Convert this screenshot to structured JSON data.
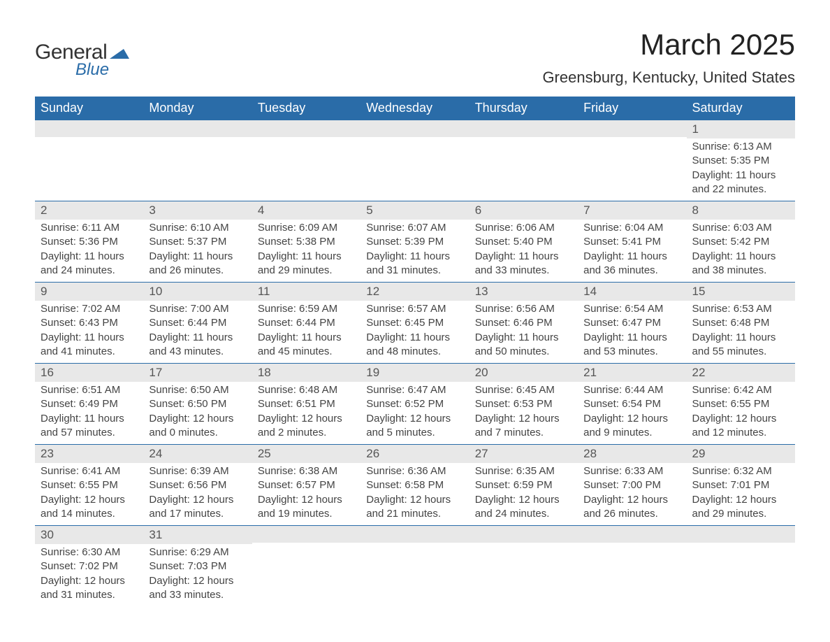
{
  "logo": {
    "text1": "General",
    "text2": "Blue",
    "shape_color": "#2a6ca8"
  },
  "title": "March 2025",
  "location": "Greensburg, Kentucky, United States",
  "colors": {
    "header_bg": "#2a6ca8",
    "header_text": "#ffffff",
    "daynum_bg": "#e8e8e8",
    "border": "#2a6ca8",
    "body_text": "#444444"
  },
  "weekdays": [
    "Sunday",
    "Monday",
    "Tuesday",
    "Wednesday",
    "Thursday",
    "Friday",
    "Saturday"
  ],
  "weeks": [
    [
      null,
      null,
      null,
      null,
      null,
      null,
      {
        "n": "1",
        "sunrise": "6:13 AM",
        "sunset": "5:35 PM",
        "daylight": "11 hours and 22 minutes."
      }
    ],
    [
      {
        "n": "2",
        "sunrise": "6:11 AM",
        "sunset": "5:36 PM",
        "daylight": "11 hours and 24 minutes."
      },
      {
        "n": "3",
        "sunrise": "6:10 AM",
        "sunset": "5:37 PM",
        "daylight": "11 hours and 26 minutes."
      },
      {
        "n": "4",
        "sunrise": "6:09 AM",
        "sunset": "5:38 PM",
        "daylight": "11 hours and 29 minutes."
      },
      {
        "n": "5",
        "sunrise": "6:07 AM",
        "sunset": "5:39 PM",
        "daylight": "11 hours and 31 minutes."
      },
      {
        "n": "6",
        "sunrise": "6:06 AM",
        "sunset": "5:40 PM",
        "daylight": "11 hours and 33 minutes."
      },
      {
        "n": "7",
        "sunrise": "6:04 AM",
        "sunset": "5:41 PM",
        "daylight": "11 hours and 36 minutes."
      },
      {
        "n": "8",
        "sunrise": "6:03 AM",
        "sunset": "5:42 PM",
        "daylight": "11 hours and 38 minutes."
      }
    ],
    [
      {
        "n": "9",
        "sunrise": "7:02 AM",
        "sunset": "6:43 PM",
        "daylight": "11 hours and 41 minutes."
      },
      {
        "n": "10",
        "sunrise": "7:00 AM",
        "sunset": "6:44 PM",
        "daylight": "11 hours and 43 minutes."
      },
      {
        "n": "11",
        "sunrise": "6:59 AM",
        "sunset": "6:44 PM",
        "daylight": "11 hours and 45 minutes."
      },
      {
        "n": "12",
        "sunrise": "6:57 AM",
        "sunset": "6:45 PM",
        "daylight": "11 hours and 48 minutes."
      },
      {
        "n": "13",
        "sunrise": "6:56 AM",
        "sunset": "6:46 PM",
        "daylight": "11 hours and 50 minutes."
      },
      {
        "n": "14",
        "sunrise": "6:54 AM",
        "sunset": "6:47 PM",
        "daylight": "11 hours and 53 minutes."
      },
      {
        "n": "15",
        "sunrise": "6:53 AM",
        "sunset": "6:48 PM",
        "daylight": "11 hours and 55 minutes."
      }
    ],
    [
      {
        "n": "16",
        "sunrise": "6:51 AM",
        "sunset": "6:49 PM",
        "daylight": "11 hours and 57 minutes."
      },
      {
        "n": "17",
        "sunrise": "6:50 AM",
        "sunset": "6:50 PM",
        "daylight": "12 hours and 0 minutes."
      },
      {
        "n": "18",
        "sunrise": "6:48 AM",
        "sunset": "6:51 PM",
        "daylight": "12 hours and 2 minutes."
      },
      {
        "n": "19",
        "sunrise": "6:47 AM",
        "sunset": "6:52 PM",
        "daylight": "12 hours and 5 minutes."
      },
      {
        "n": "20",
        "sunrise": "6:45 AM",
        "sunset": "6:53 PM",
        "daylight": "12 hours and 7 minutes."
      },
      {
        "n": "21",
        "sunrise": "6:44 AM",
        "sunset": "6:54 PM",
        "daylight": "12 hours and 9 minutes."
      },
      {
        "n": "22",
        "sunrise": "6:42 AM",
        "sunset": "6:55 PM",
        "daylight": "12 hours and 12 minutes."
      }
    ],
    [
      {
        "n": "23",
        "sunrise": "6:41 AM",
        "sunset": "6:55 PM",
        "daylight": "12 hours and 14 minutes."
      },
      {
        "n": "24",
        "sunrise": "6:39 AM",
        "sunset": "6:56 PM",
        "daylight": "12 hours and 17 minutes."
      },
      {
        "n": "25",
        "sunrise": "6:38 AM",
        "sunset": "6:57 PM",
        "daylight": "12 hours and 19 minutes."
      },
      {
        "n": "26",
        "sunrise": "6:36 AM",
        "sunset": "6:58 PM",
        "daylight": "12 hours and 21 minutes."
      },
      {
        "n": "27",
        "sunrise": "6:35 AM",
        "sunset": "6:59 PM",
        "daylight": "12 hours and 24 minutes."
      },
      {
        "n": "28",
        "sunrise": "6:33 AM",
        "sunset": "7:00 PM",
        "daylight": "12 hours and 26 minutes."
      },
      {
        "n": "29",
        "sunrise": "6:32 AM",
        "sunset": "7:01 PM",
        "daylight": "12 hours and 29 minutes."
      }
    ],
    [
      {
        "n": "30",
        "sunrise": "6:30 AM",
        "sunset": "7:02 PM",
        "daylight": "12 hours and 31 minutes."
      },
      {
        "n": "31",
        "sunrise": "6:29 AM",
        "sunset": "7:03 PM",
        "daylight": "12 hours and 33 minutes."
      },
      null,
      null,
      null,
      null,
      null
    ]
  ],
  "labels": {
    "sunrise": "Sunrise:",
    "sunset": "Sunset:",
    "daylight": "Daylight:"
  }
}
